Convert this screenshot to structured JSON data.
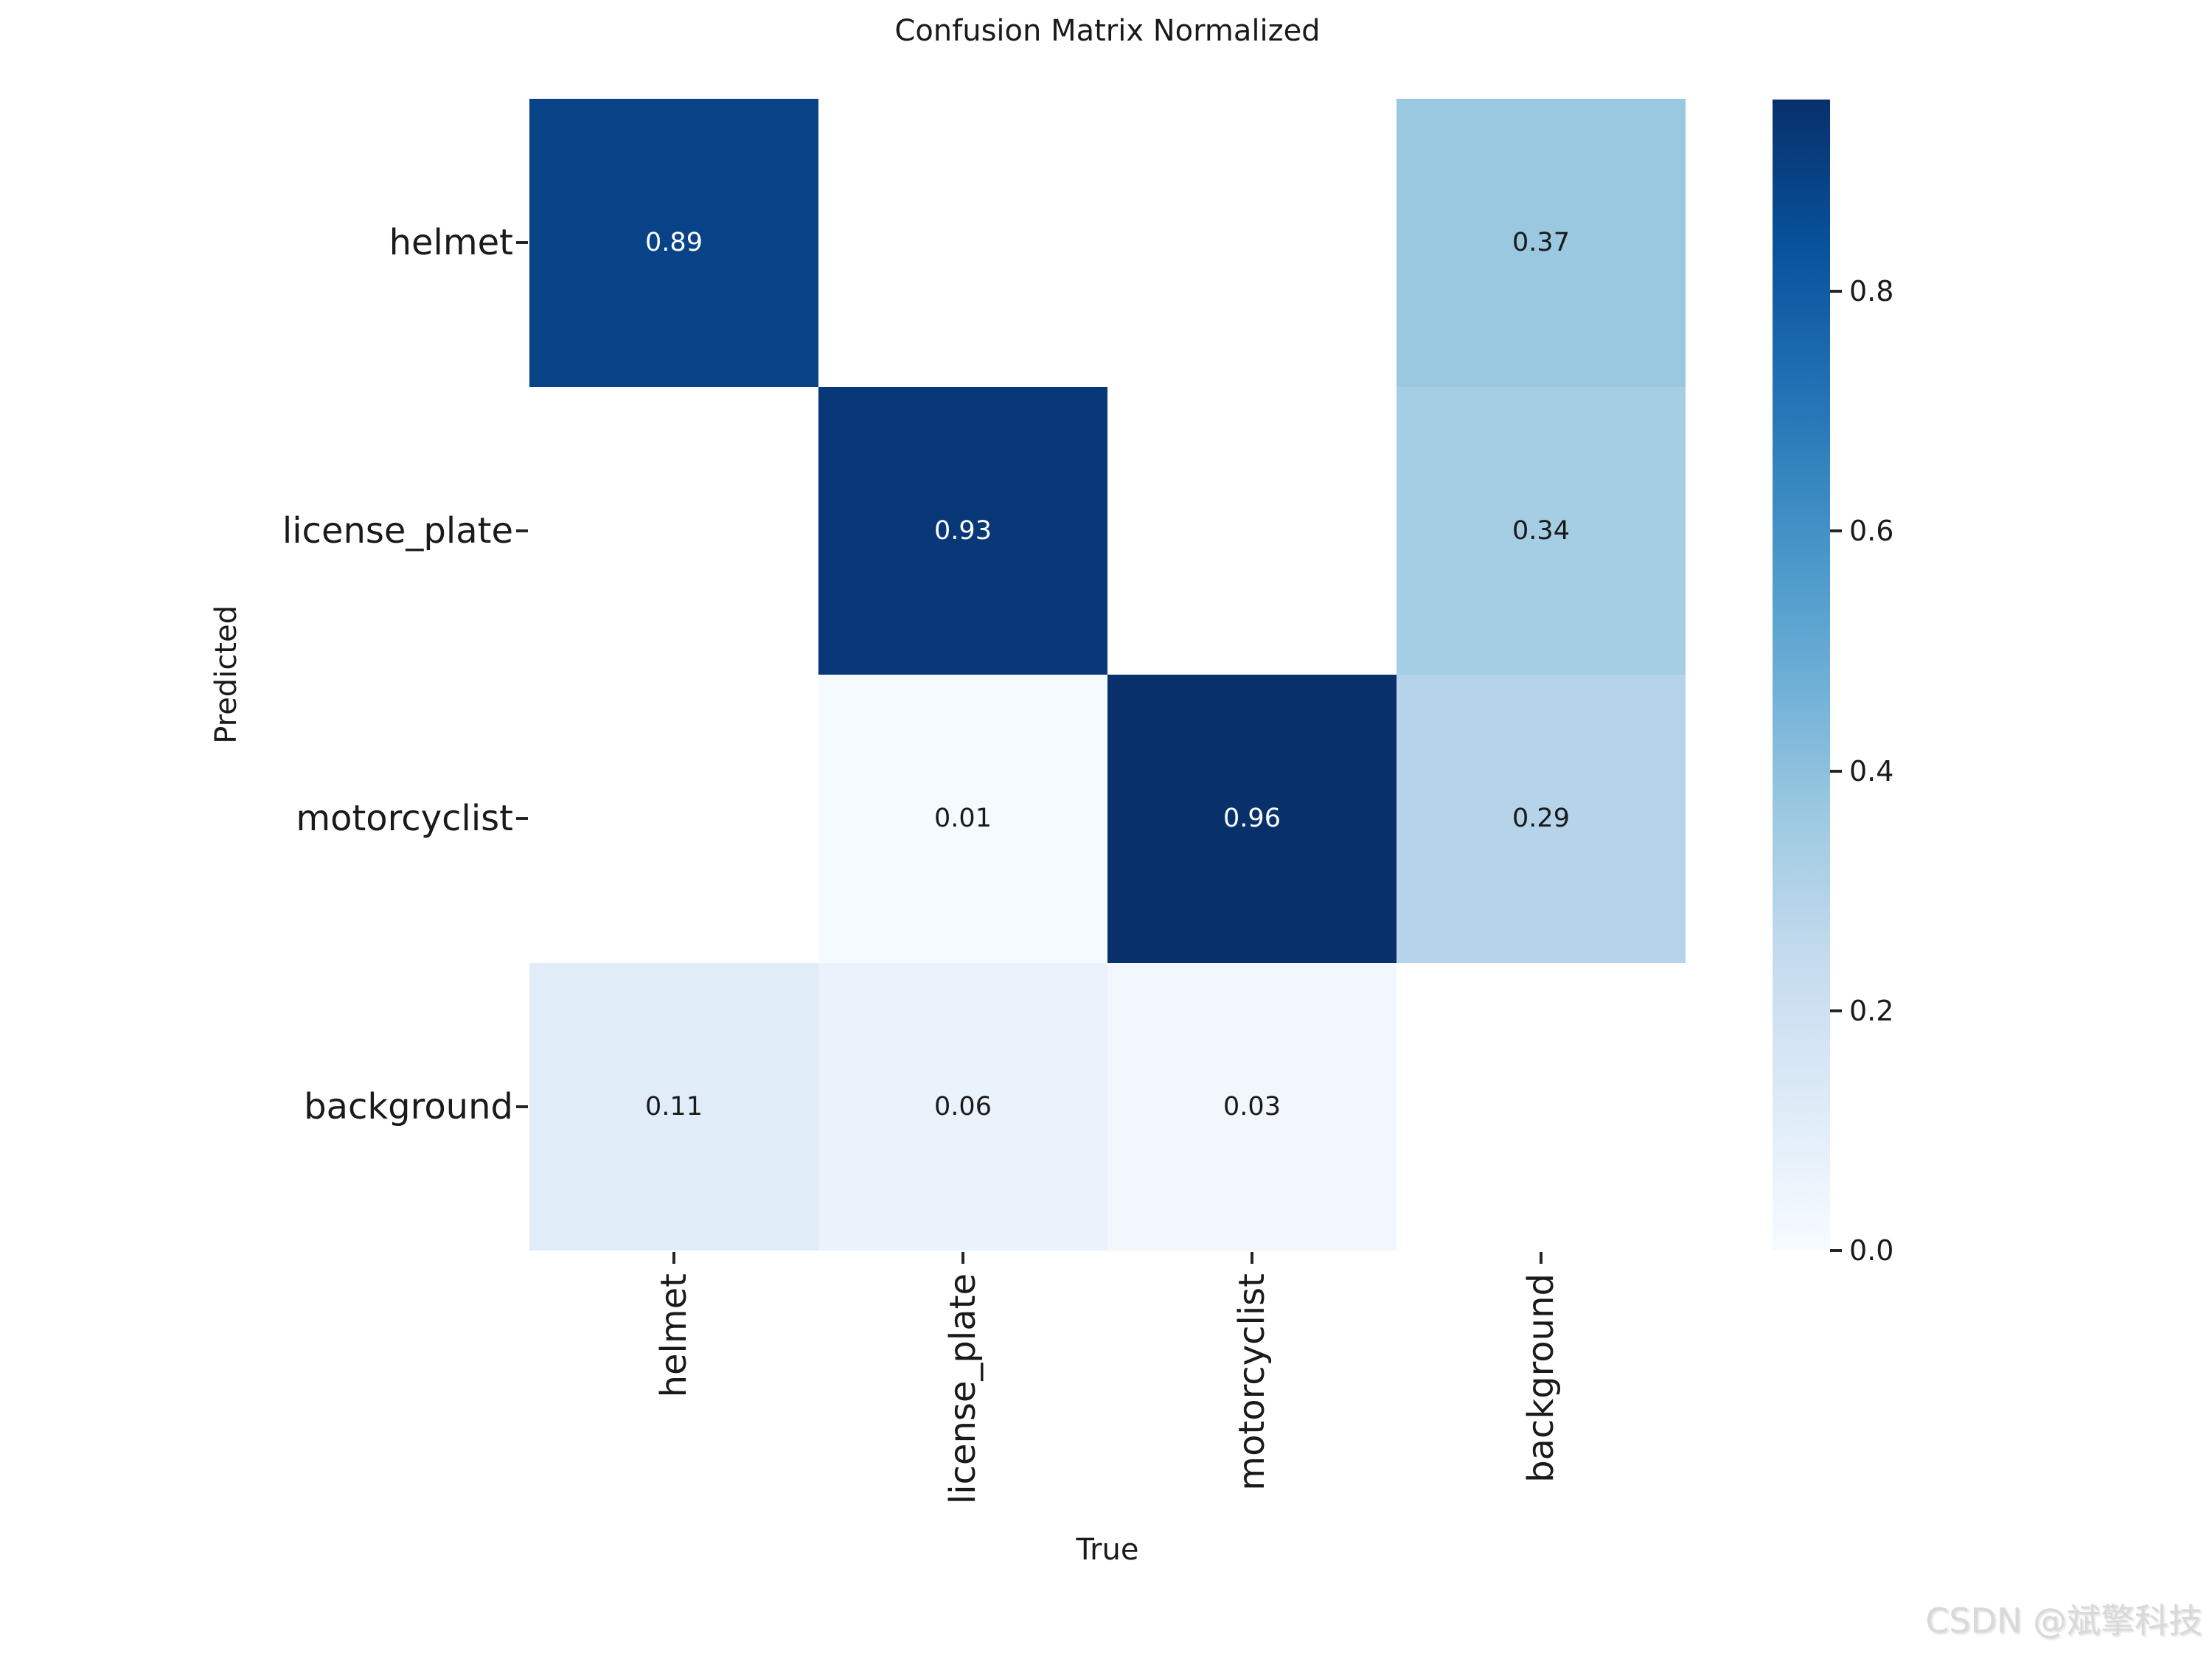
{
  "chart_data": {
    "type": "heatmap",
    "title": "Confusion Matrix Normalized",
    "xlabel": "True",
    "ylabel": "Predicted",
    "x_categories": [
      "helmet",
      "license_plate",
      "motorcyclist",
      "background"
    ],
    "y_categories": [
      "helmet",
      "license_plate",
      "motorcyclist",
      "background"
    ],
    "matrix": [
      [
        0.89,
        null,
        null,
        0.37
      ],
      [
        null,
        0.93,
        null,
        0.34
      ],
      [
        null,
        0.01,
        0.96,
        0.29
      ],
      [
        0.11,
        0.06,
        0.03,
        null
      ]
    ],
    "cell_labels": [
      [
        "0.89",
        "",
        "",
        "0.37"
      ],
      [
        "",
        "0.93",
        "",
        "0.34"
      ],
      [
        "",
        "0.01",
        "0.96",
        "0.29"
      ],
      [
        "0.11",
        "0.06",
        "0.03",
        ""
      ]
    ],
    "cell_colors": [
      [
        "#084388",
        "#ffffff",
        "#ffffff",
        "#9ac8e0"
      ],
      [
        "#ffffff",
        "#083877",
        "#ffffff",
        "#a5cde3"
      ],
      [
        "#ffffff",
        "#f5fafe",
        "#08306b",
        "#b5d4e9"
      ],
      [
        "#e0ecf8",
        "#eaf3fb",
        "#f1f7fd",
        "#ffffff"
      ]
    ],
    "cell_text_colors": [
      [
        "#ffffff",
        "",
        "",
        "#1a1a1a"
      ],
      [
        "",
        "#ffffff",
        "",
        "#1a1a1a"
      ],
      [
        "",
        "#1a1a1a",
        "#ffffff",
        "#1a1a1a"
      ],
      [
        "#1a1a1a",
        "#1a1a1a",
        "#1a1a1a",
        ""
      ]
    ],
    "colormap": "Blues",
    "vmin": 0.0,
    "vmax": 0.96,
    "grid": false,
    "colorbar": {
      "position": "right",
      "tick_labels": [
        "0.8",
        "0.6",
        "0.4",
        "0.2",
        "0.0"
      ],
      "tick_values": [
        0.8,
        0.6,
        0.4,
        0.2,
        0.0
      ],
      "gradient_bottom_to_top": [
        "#f7fbff",
        "#deebf7",
        "#c6dbef",
        "#9ecae1",
        "#6baed6",
        "#4292c6",
        "#2171b5",
        "#08519c",
        "#08306b"
      ]
    }
  },
  "watermark": {
    "text": "CSDN @斌擎科技",
    "color": "#d9d9d9"
  }
}
